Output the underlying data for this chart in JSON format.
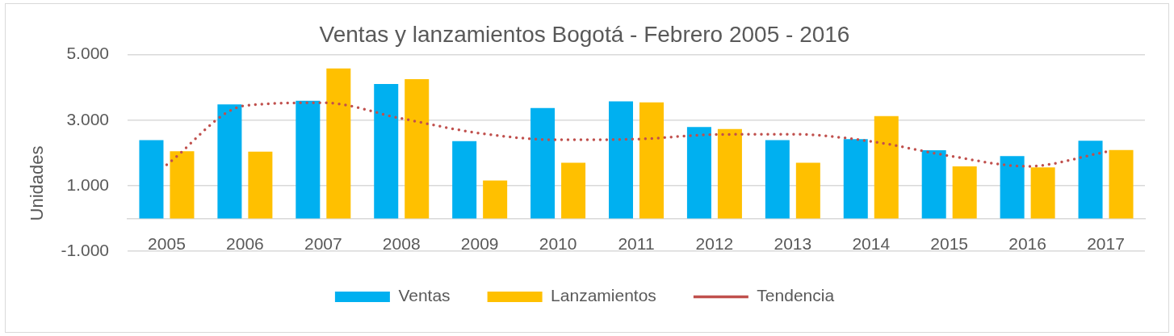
{
  "chart_data": {
    "type": "bar",
    "title": "Ventas y lanzamientos Bogotá - Febrero 2005 - 2016",
    "ylabel": "Unidades",
    "categories": [
      "2005",
      "2006",
      "2007",
      "2008",
      "2009",
      "2010",
      "2011",
      "2012",
      "2013",
      "2014",
      "2015",
      "2016",
      "2017"
    ],
    "series": [
      {
        "name": "Ventas",
        "color": "#00b0f0",
        "values": [
          2390,
          3480,
          3590,
          4100,
          2360,
          3370,
          3570,
          2790,
          2390,
          2420,
          2080,
          1900,
          2370
        ]
      },
      {
        "name": "Lanzamientos",
        "color": "#ffc000",
        "values": [
          2050,
          2040,
          4580,
          4250,
          1160,
          1700,
          3540,
          2730,
          1700,
          3120,
          1590,
          1560,
          2090
        ]
      },
      {
        "name": "Tendencia",
        "type": "line",
        "color": "#c0504d",
        "values": [
          1640,
          3440,
          3530,
          3050,
          2600,
          2400,
          2420,
          2560,
          2570,
          2350,
          1910,
          1590,
          2030
        ]
      }
    ],
    "ylim": [
      -1000,
      5000
    ],
    "yticks": [
      {
        "value": -1000,
        "label": "-1.000"
      },
      {
        "value": 1000,
        "label": "1.000"
      },
      {
        "value": 3000,
        "label": "3.000"
      },
      {
        "value": 5000,
        "label": "5.000"
      }
    ],
    "grid": "y",
    "legend": "bottom",
    "line_style": "dotted",
    "marker": "none"
  }
}
